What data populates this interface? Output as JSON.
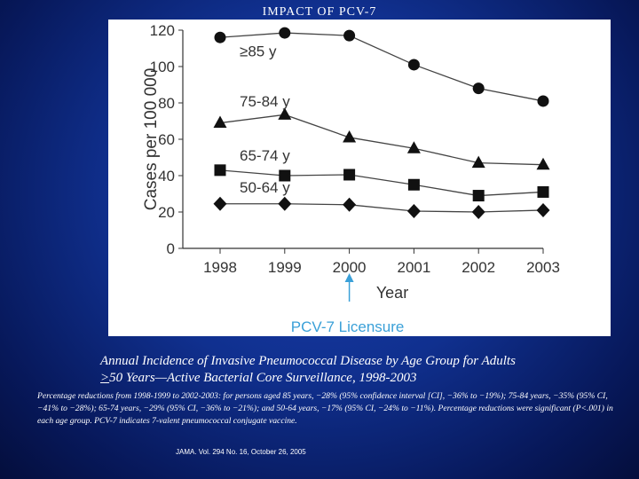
{
  "slide": {
    "title": "IMPACT OF PCV-7",
    "caption_main_line1": "Annual Incidence of Invasive Pneumococcal Disease by Age Group for Adults",
    "caption_main_gte": ">",
    "caption_main_line2": "50 Years—Active Bacterial Core Surveillance, 1998-2003",
    "caption_detail": "Percentage reductions from 1998-1999 to 2002-2003: for persons aged  85 years, −28% (95% confidence interval [CI], −36% to −19%); 75-84 years, −35% (95% CI, −41% to −28%); 65-74 years, −29% (95% CI, −36% to −21%); and 50-64 years, −17% (95% CI, −24% to −11%). Percentage reductions were significant (P<.001) in each age group. PCV-7 indicates 7-valent pneumococcal conjugate vaccine.",
    "citation": "JAMA. Vol. 294 No. 16, October 26, 2005"
  },
  "chart_data": {
    "type": "line",
    "title": "",
    "xlabel": "Year",
    "ylabel": "Cases per 100 000",
    "ylim": [
      0,
      120
    ],
    "yticks": [
      0,
      20,
      40,
      60,
      80,
      100,
      120
    ],
    "categories": [
      "1998",
      "1999",
      "2000",
      "2001",
      "2002",
      "2003"
    ],
    "series": [
      {
        "name": "≥85 y",
        "marker": "circle",
        "values": [
          116,
          118.5,
          117,
          101,
          88,
          81
        ]
      },
      {
        "name": "75-84 y",
        "marker": "triangle",
        "values": [
          69,
          73.5,
          61,
          55,
          47,
          46
        ]
      },
      {
        "name": "65-74 y",
        "marker": "square",
        "values": [
          43,
          40,
          40.5,
          35,
          29,
          31
        ]
      },
      {
        "name": "50-64 y",
        "marker": "diamond",
        "values": [
          24.5,
          24.5,
          24,
          20.5,
          20,
          21
        ]
      }
    ],
    "annotation": {
      "label": "PCV-7 Licensure",
      "at_category": "2000"
    },
    "colors": {
      "line": "#444444",
      "marker": "#111111",
      "axis": "#333333",
      "annotation": "#3aa0d8"
    }
  }
}
